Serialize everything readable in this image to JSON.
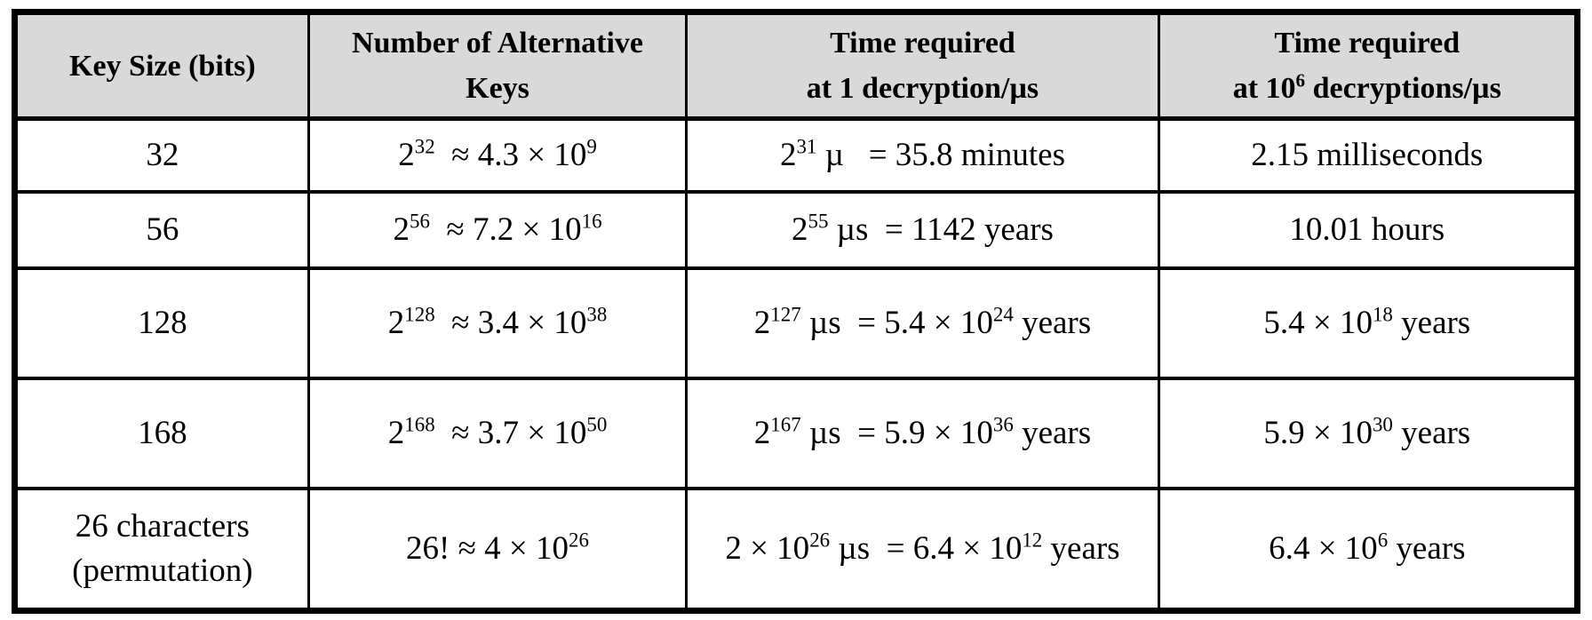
{
  "colors": {
    "header_bg": "#d9d9d9",
    "border_color": "#000000",
    "text_color": "#000000",
    "page_bg": "#ffffff"
  },
  "table": {
    "name": "exhaustive-key-search-times",
    "columns": [
      {
        "label": "Key Size (bits)"
      },
      {
        "label": "Number of Alternative\nKeys"
      },
      {
        "label": "Time required\nat 1 decryption/µs"
      },
      {
        "label": "Time required\nat 10^{6} decryptions/µs"
      }
    ],
    "rows": [
      {
        "cells": [
          "32",
          "2^{32}  ≈ 4.3 × 10^{9}",
          "2^{31} µ   = 35.8 minutes",
          "2.15 milliseconds"
        ]
      },
      {
        "cells": [
          "56",
          "2^{56}  ≈ 7.2 × 10^{16}",
          "2^{55} µs  = 1142 years",
          "10.01 hours"
        ]
      },
      {
        "cells": [
          "128",
          "2^{128}  ≈ 3.4 × 10^{38}",
          "2^{127} µs  = 5.4 × 10^{24} years",
          "5.4 × 10^{18} years"
        ]
      },
      {
        "cells": [
          "168",
          "2^{168}  ≈ 3.7 × 10^{50}",
          "2^{167} µs  = 5.9 × 10^{36} years",
          "5.9 × 10^{30} years"
        ]
      },
      {
        "cells": [
          "26 characters\n(permutation)",
          "26! ≈ 4 × 10^{26}",
          "2 × 10^{26} µs  = 6.4 × 10^{12} years",
          "6.4 × 10^{6} years"
        ]
      }
    ]
  }
}
